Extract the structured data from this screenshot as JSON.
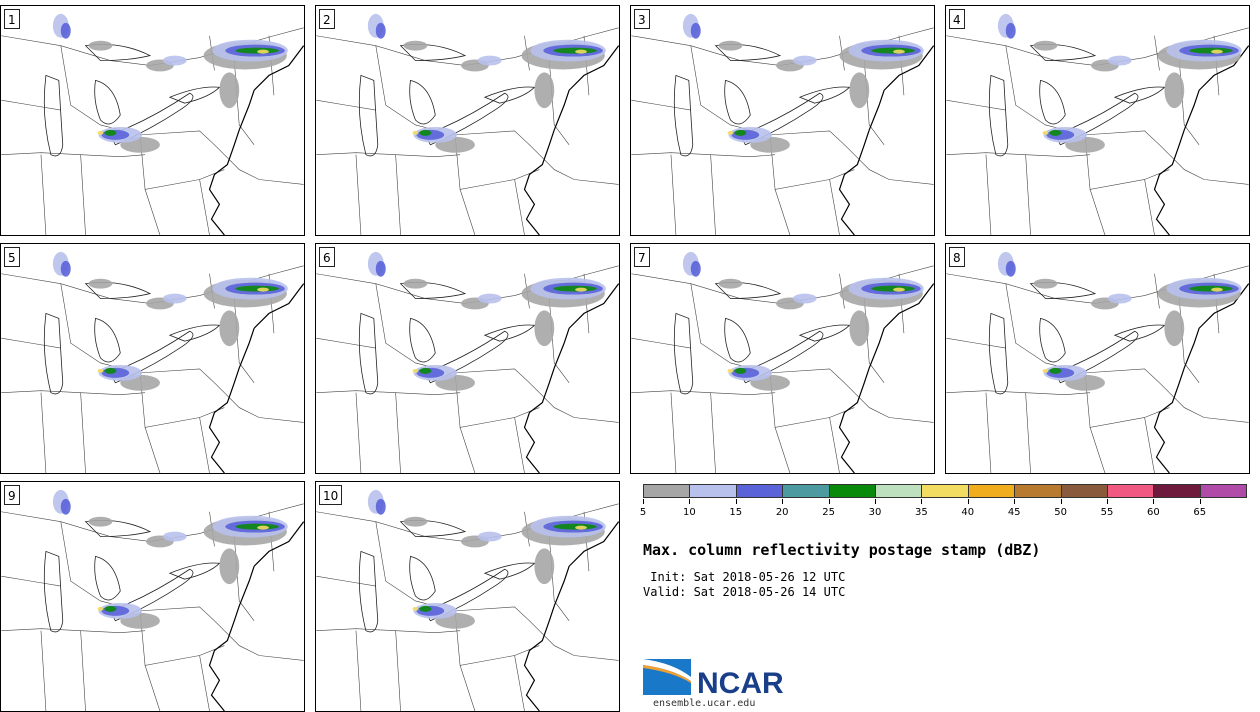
{
  "panels": [
    "1",
    "2",
    "3",
    "4",
    "5",
    "6",
    "7",
    "8",
    "9",
    "10"
  ],
  "legend": {
    "colors": [
      "#a6a6a6",
      "#b8c1ec",
      "#5a63d8",
      "#4d9aa1",
      "#0a8a0a",
      "#bfe0bf",
      "#f2dc62",
      "#f0ae1e",
      "#b87a2e",
      "#8a5a3c",
      "#f05a82",
      "#6e1a3c",
      "#b04ca8"
    ],
    "ticks": [
      "5",
      "10",
      "15",
      "20",
      "25",
      "30",
      "35",
      "40",
      "45",
      "50",
      "55",
      "60",
      "65"
    ]
  },
  "title": "Max. column reflectivity postage stamp (dBZ)",
  "init": " Init: Sat 2018-05-26 12 UTC",
  "valid": "Valid: Sat 2018-05-26 14 UTC",
  "logo_text": "NCAR",
  "url": "ensemble.ucar.edu"
}
